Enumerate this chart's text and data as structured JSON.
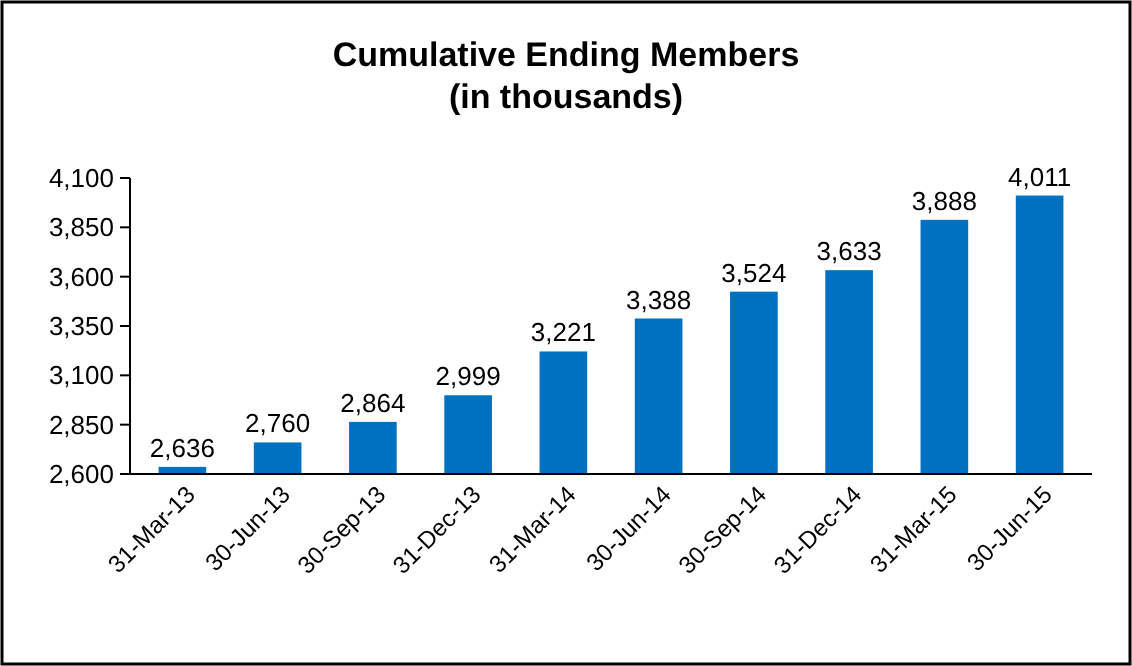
{
  "chart_data": {
    "type": "bar",
    "title": "Cumulative Ending Members\n(in thousands)",
    "categories": [
      "31-Mar-13",
      "30-Jun-13",
      "30-Sep-13",
      "31-Dec-13",
      "31-Mar-14",
      "30-Jun-14",
      "30-Sep-14",
      "31-Dec-14",
      "31-Mar-15",
      "30-Jun-15"
    ],
    "values": [
      2636,
      2760,
      2864,
      2999,
      3221,
      3388,
      3524,
      3633,
      3888,
      4011
    ],
    "value_labels": [
      "2,636",
      "2,760",
      "2,864",
      "2,999",
      "3,221",
      "3,388",
      "3,524",
      "3,633",
      "3,888",
      "4,011"
    ],
    "color": "#0070c0",
    "ylim": [
      2600,
      4100
    ],
    "yticks": [
      {
        "value": 2600,
        "label": "2,600"
      },
      {
        "value": 2850,
        "label": "2,850"
      },
      {
        "value": 3100,
        "label": "3,100"
      },
      {
        "value": 3350,
        "label": "3,350"
      },
      {
        "value": 3600,
        "label": "3,600"
      },
      {
        "value": 3850,
        "label": "3,850"
      },
      {
        "value": 4100,
        "label": "4,100"
      }
    ],
    "grid": false
  }
}
